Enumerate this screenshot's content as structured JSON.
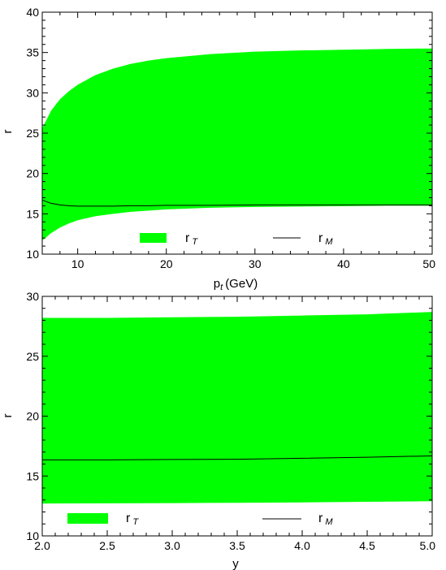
{
  "chart_data": [
    {
      "type": "area",
      "xlabel": "p",
      "xlabel_sub": "t",
      "xlabel_unit": "(GeV)",
      "ylabel": "r",
      "xlim": [
        6,
        50
      ],
      "ylim": [
        10,
        40
      ],
      "xticks": [
        10,
        20,
        30,
        40,
        50
      ],
      "yticks": [
        10,
        15,
        20,
        25,
        30,
        35,
        40
      ],
      "x": [
        6,
        7,
        8,
        9,
        10,
        12,
        14,
        16,
        18,
        20,
        25,
        30,
        35,
        40,
        45,
        50
      ],
      "series": [
        {
          "name": "r",
          "name_sub": "T",
          "kind": "band",
          "color": "#00ff00",
          "upper": [
            25.6,
            27.8,
            29.2,
            30.2,
            31.0,
            32.2,
            33.0,
            33.6,
            34.0,
            34.3,
            34.8,
            35.1,
            35.25,
            35.35,
            35.45,
            35.5
          ],
          "lower": [
            11.7,
            12.6,
            13.3,
            13.8,
            14.2,
            14.7,
            15.0,
            15.25,
            15.4,
            15.55,
            15.75,
            15.85,
            15.9,
            15.95,
            16.0,
            16.0
          ]
        },
        {
          "name": "r",
          "name_sub": "M",
          "kind": "line",
          "color": "#000000",
          "values": [
            16.7,
            16.3,
            16.1,
            16.0,
            15.95,
            15.95,
            15.95,
            16.0,
            16.0,
            16.05,
            16.05,
            16.1,
            16.1,
            16.1,
            16.1,
            16.1
          ]
        }
      ],
      "legend": "bottom"
    },
    {
      "type": "area",
      "xlabel": "y",
      "ylabel": "r",
      "xlim": [
        2.0,
        5.0
      ],
      "ylim": [
        10,
        30
      ],
      "xticks": [
        "2.0",
        "2.5",
        "3.0",
        "3.5",
        "4.0",
        "4.5",
        "5.0"
      ],
      "yticks": [
        10,
        15,
        20,
        25,
        30
      ],
      "x": [
        2.0,
        2.5,
        3.0,
        3.5,
        4.0,
        4.5,
        5.0
      ],
      "series": [
        {
          "name": "r",
          "name_sub": "T",
          "kind": "band",
          "color": "#00ff00",
          "upper": [
            28.2,
            28.2,
            28.25,
            28.3,
            28.4,
            28.5,
            28.7
          ],
          "lower": [
            12.7,
            12.72,
            12.74,
            12.76,
            12.8,
            12.85,
            12.9
          ]
        },
        {
          "name": "r",
          "name_sub": "M",
          "kind": "line",
          "color": "#000000",
          "values": [
            16.35,
            16.35,
            16.38,
            16.4,
            16.48,
            16.57,
            16.68
          ]
        }
      ],
      "legend": "bottom"
    }
  ]
}
